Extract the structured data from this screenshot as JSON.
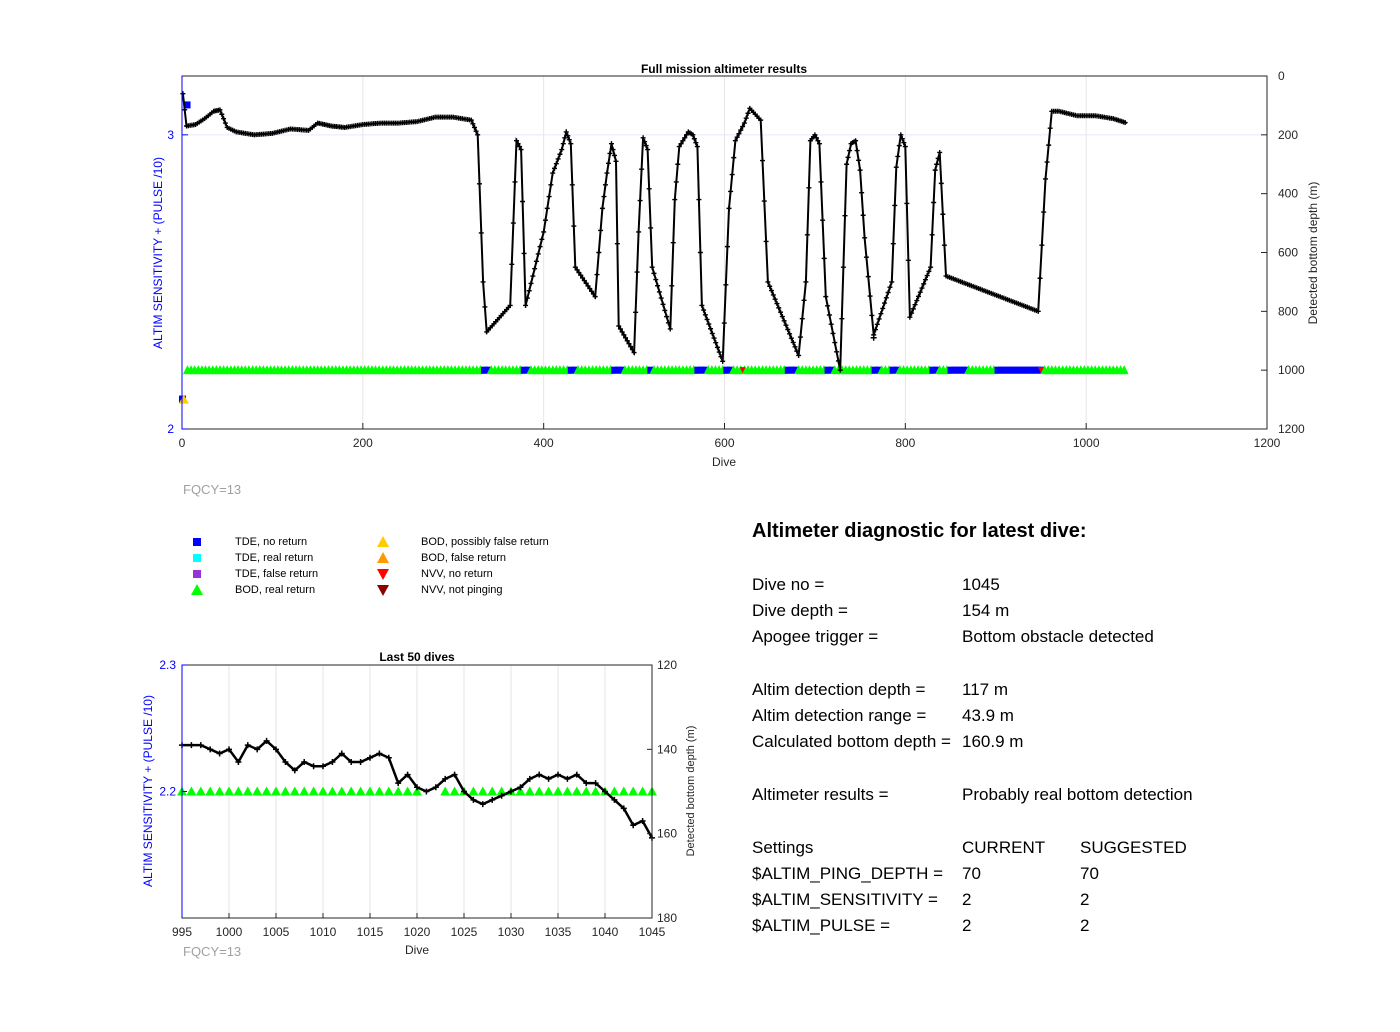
{
  "main_plot": {
    "title": "Full mission altimeter results",
    "xlabel": "Dive",
    "ylabel_left": "ALTIM SENSITIVITY + (PULSE /10)",
    "ylabel_right": "Detected bottom depth (m)",
    "x_ticks": [
      "0",
      "200",
      "400",
      "600",
      "800",
      "1000",
      "1200"
    ],
    "y_left_ticks": [
      "2",
      "3"
    ],
    "y_right_ticks": [
      "0",
      "200",
      "400",
      "600",
      "800",
      "1000",
      "1200"
    ],
    "fqcy": "FQCY=13"
  },
  "last_plot": {
    "title": "Last 50 dives",
    "xlabel": "Dive",
    "ylabel_left": "ALTIM SENSITIVITY + (PULSE /10)",
    "ylabel_right": "Detected bottom depth (m)",
    "x_ticks": [
      "995",
      "1000",
      "1005",
      "1010",
      "1015",
      "1020",
      "1025",
      "1030",
      "1035",
      "1040",
      "1045"
    ],
    "y_left_ticks": [
      "2.2",
      "2.3"
    ],
    "y_right_ticks": [
      "120",
      "140",
      "160",
      "180"
    ],
    "fqcy": "FQCY=13"
  },
  "legend": [
    {
      "label": "TDE, no return",
      "color": "#0000ff",
      "shape": "square"
    },
    {
      "label": "TDE, real return",
      "color": "#00ffff",
      "shape": "square"
    },
    {
      "label": "TDE, false return",
      "color": "#9b30d9",
      "shape": "square"
    },
    {
      "label": "BOD, real return",
      "color": "#00ff00",
      "shape": "triangle-up"
    },
    {
      "label": "BOD, possibly false return",
      "color": "#ffcc00",
      "shape": "triangle-up"
    },
    {
      "label": "BOD, false return",
      "color": "#ff9900",
      "shape": "triangle-up"
    },
    {
      "label": "NVV, no return",
      "color": "#ff0000",
      "shape": "triangle-down"
    },
    {
      "label": "NVV, not pinging",
      "color": "#8b0000",
      "shape": "triangle-down"
    }
  ],
  "diagnostic": {
    "heading": "Altimeter diagnostic for latest dive:",
    "dive_no_label": "Dive no =",
    "dive_no": "1045",
    "dive_depth_label": "Dive depth =",
    "dive_depth": "154 m",
    "apogee_label": "Apogee trigger =",
    "apogee": "Bottom obstacle detected",
    "altim_depth_label": "Altim detection depth =",
    "altim_depth": "117 m",
    "altim_range_label": "Altim detection range =",
    "altim_range": "43.9 m",
    "calc_bottom_label": "Calculated bottom depth =",
    "calc_bottom": "160.9 m",
    "results_label": "Altimeter results =",
    "results": "Probably real bottom detection",
    "settings_label": "Settings",
    "current_label": "CURRENT",
    "suggested_label": "SUGGESTED",
    "ping_depth_label": "$ALTIM_PING_DEPTH =",
    "ping_depth_current": "70",
    "ping_depth_suggested": "70",
    "sensitivity_label": "$ALTIM_SENSITIVITY =",
    "sensitivity_current": "2",
    "sensitivity_suggested": "2",
    "pulse_label": "$ALTIM_PULSE =",
    "pulse_current": "2",
    "pulse_suggested": "2"
  },
  "chart_data": [
    {
      "type": "scatter",
      "title": "Full mission altimeter results",
      "xlabel": "Dive",
      "ylabel_left": "ALTIM SENSITIVITY + (PULSE /10)",
      "ylabel_right": "Detected bottom depth (m)",
      "xlim": [
        0,
        1200
      ],
      "ylim_left": [
        2,
        3.2
      ],
      "ylim_right": [
        1200,
        0
      ],
      "grid": true,
      "bottom_depth": [
        [
          1,
          60
        ],
        [
          5,
          170
        ],
        [
          15,
          165
        ],
        [
          25,
          145
        ],
        [
          35,
          120
        ],
        [
          42,
          115
        ],
        [
          50,
          175
        ],
        [
          60,
          190
        ],
        [
          80,
          200
        ],
        [
          100,
          195
        ],
        [
          120,
          180
        ],
        [
          140,
          185
        ],
        [
          150,
          160
        ],
        [
          165,
          170
        ],
        [
          180,
          175
        ],
        [
          200,
          165
        ],
        [
          220,
          160
        ],
        [
          240,
          160
        ],
        [
          260,
          155
        ],
        [
          280,
          140
        ],
        [
          300,
          140
        ],
        [
          320,
          150
        ],
        [
          327,
          200
        ],
        [
          333,
          700
        ],
        [
          337,
          870
        ],
        [
          363,
          780
        ],
        [
          370,
          220
        ],
        [
          375,
          250
        ],
        [
          380,
          780
        ],
        [
          400,
          530
        ],
        [
          410,
          330
        ],
        [
          420,
          250
        ],
        [
          425,
          190
        ],
        [
          430,
          230
        ],
        [
          435,
          650
        ],
        [
          457,
          750
        ],
        [
          465,
          450
        ],
        [
          470,
          330
        ],
        [
          475,
          230
        ],
        [
          480,
          290
        ],
        [
          483,
          850
        ],
        [
          500,
          940
        ],
        [
          505,
          530
        ],
        [
          510,
          210
        ],
        [
          515,
          250
        ],
        [
          520,
          650
        ],
        [
          540,
          860
        ],
        [
          545,
          420
        ],
        [
          550,
          240
        ],
        [
          560,
          190
        ],
        [
          565,
          200
        ],
        [
          570,
          240
        ],
        [
          575,
          780
        ],
        [
          598,
          970
        ],
        [
          605,
          450
        ],
        [
          612,
          220
        ],
        [
          622,
          160
        ],
        [
          628,
          110
        ],
        [
          640,
          150
        ],
        [
          648,
          700
        ],
        [
          682,
          950
        ],
        [
          690,
          700
        ],
        [
          695,
          220
        ],
        [
          700,
          200
        ],
        [
          705,
          230
        ],
        [
          712,
          750
        ],
        [
          728,
          1000
        ],
        [
          735,
          300
        ],
        [
          740,
          230
        ],
        [
          745,
          220
        ],
        [
          750,
          320
        ],
        [
          755,
          550
        ],
        [
          765,
          880
        ],
        [
          785,
          700
        ],
        [
          790,
          310
        ],
        [
          795,
          200
        ],
        [
          800,
          240
        ],
        [
          805,
          820
        ],
        [
          828,
          650
        ],
        [
          833,
          320
        ],
        [
          838,
          260
        ],
        [
          845,
          680
        ],
        [
          947,
          800
        ],
        [
          955,
          350
        ],
        [
          962,
          120
        ],
        [
          970,
          120
        ],
        [
          990,
          135
        ],
        [
          1010,
          135
        ],
        [
          1030,
          145
        ],
        [
          1045,
          160
        ]
      ],
      "sensitivity_bod_real_range": [
        [
          5,
          1045
        ]
      ],
      "sensitivity_value": 2.2,
      "bod_possibly_false_points": [
        [
          2,
          2.1
        ]
      ],
      "tde_no_return_points": [
        [
          0,
          2.1
        ],
        [
          5,
          3.1
        ]
      ]
    },
    {
      "type": "line",
      "title": "Last 50 dives",
      "xlabel": "Dive",
      "ylabel_left": "ALTIM SENSITIVITY + (PULSE /10)",
      "ylabel_right": "Detected bottom depth (m)",
      "xlim": [
        995,
        1045
      ],
      "ylim_left": [
        2.1,
        2.3
      ],
      "ylim_right": [
        180,
        120
      ],
      "grid": true,
      "x": [
        995,
        996,
        997,
        998,
        999,
        1000,
        1001,
        1002,
        1003,
        1004,
        1005,
        1006,
        1007,
        1008,
        1009,
        1010,
        1011,
        1012,
        1013,
        1014,
        1015,
        1016,
        1017,
        1018,
        1019,
        1020,
        1021,
        1022,
        1023,
        1024,
        1025,
        1026,
        1027,
        1028,
        1029,
        1030,
        1031,
        1032,
        1033,
        1034,
        1035,
        1036,
        1037,
        1038,
        1039,
        1040,
        1041,
        1042,
        1043,
        1044,
        1045
      ],
      "bottom_depth": [
        139,
        139,
        139,
        140,
        141,
        140,
        143,
        139,
        140,
        138,
        140,
        143,
        145,
        143,
        144,
        144,
        143,
        141,
        143,
        143,
        142,
        141,
        142,
        148,
        146,
        149,
        150,
        149,
        147,
        146,
        150,
        152,
        153,
        152,
        151,
        150,
        149,
        147,
        146,
        147,
        146,
        147,
        146,
        148,
        148,
        150,
        152,
        154,
        158,
        157,
        161
      ],
      "sensitivity_bod_real": 2.2
    }
  ]
}
